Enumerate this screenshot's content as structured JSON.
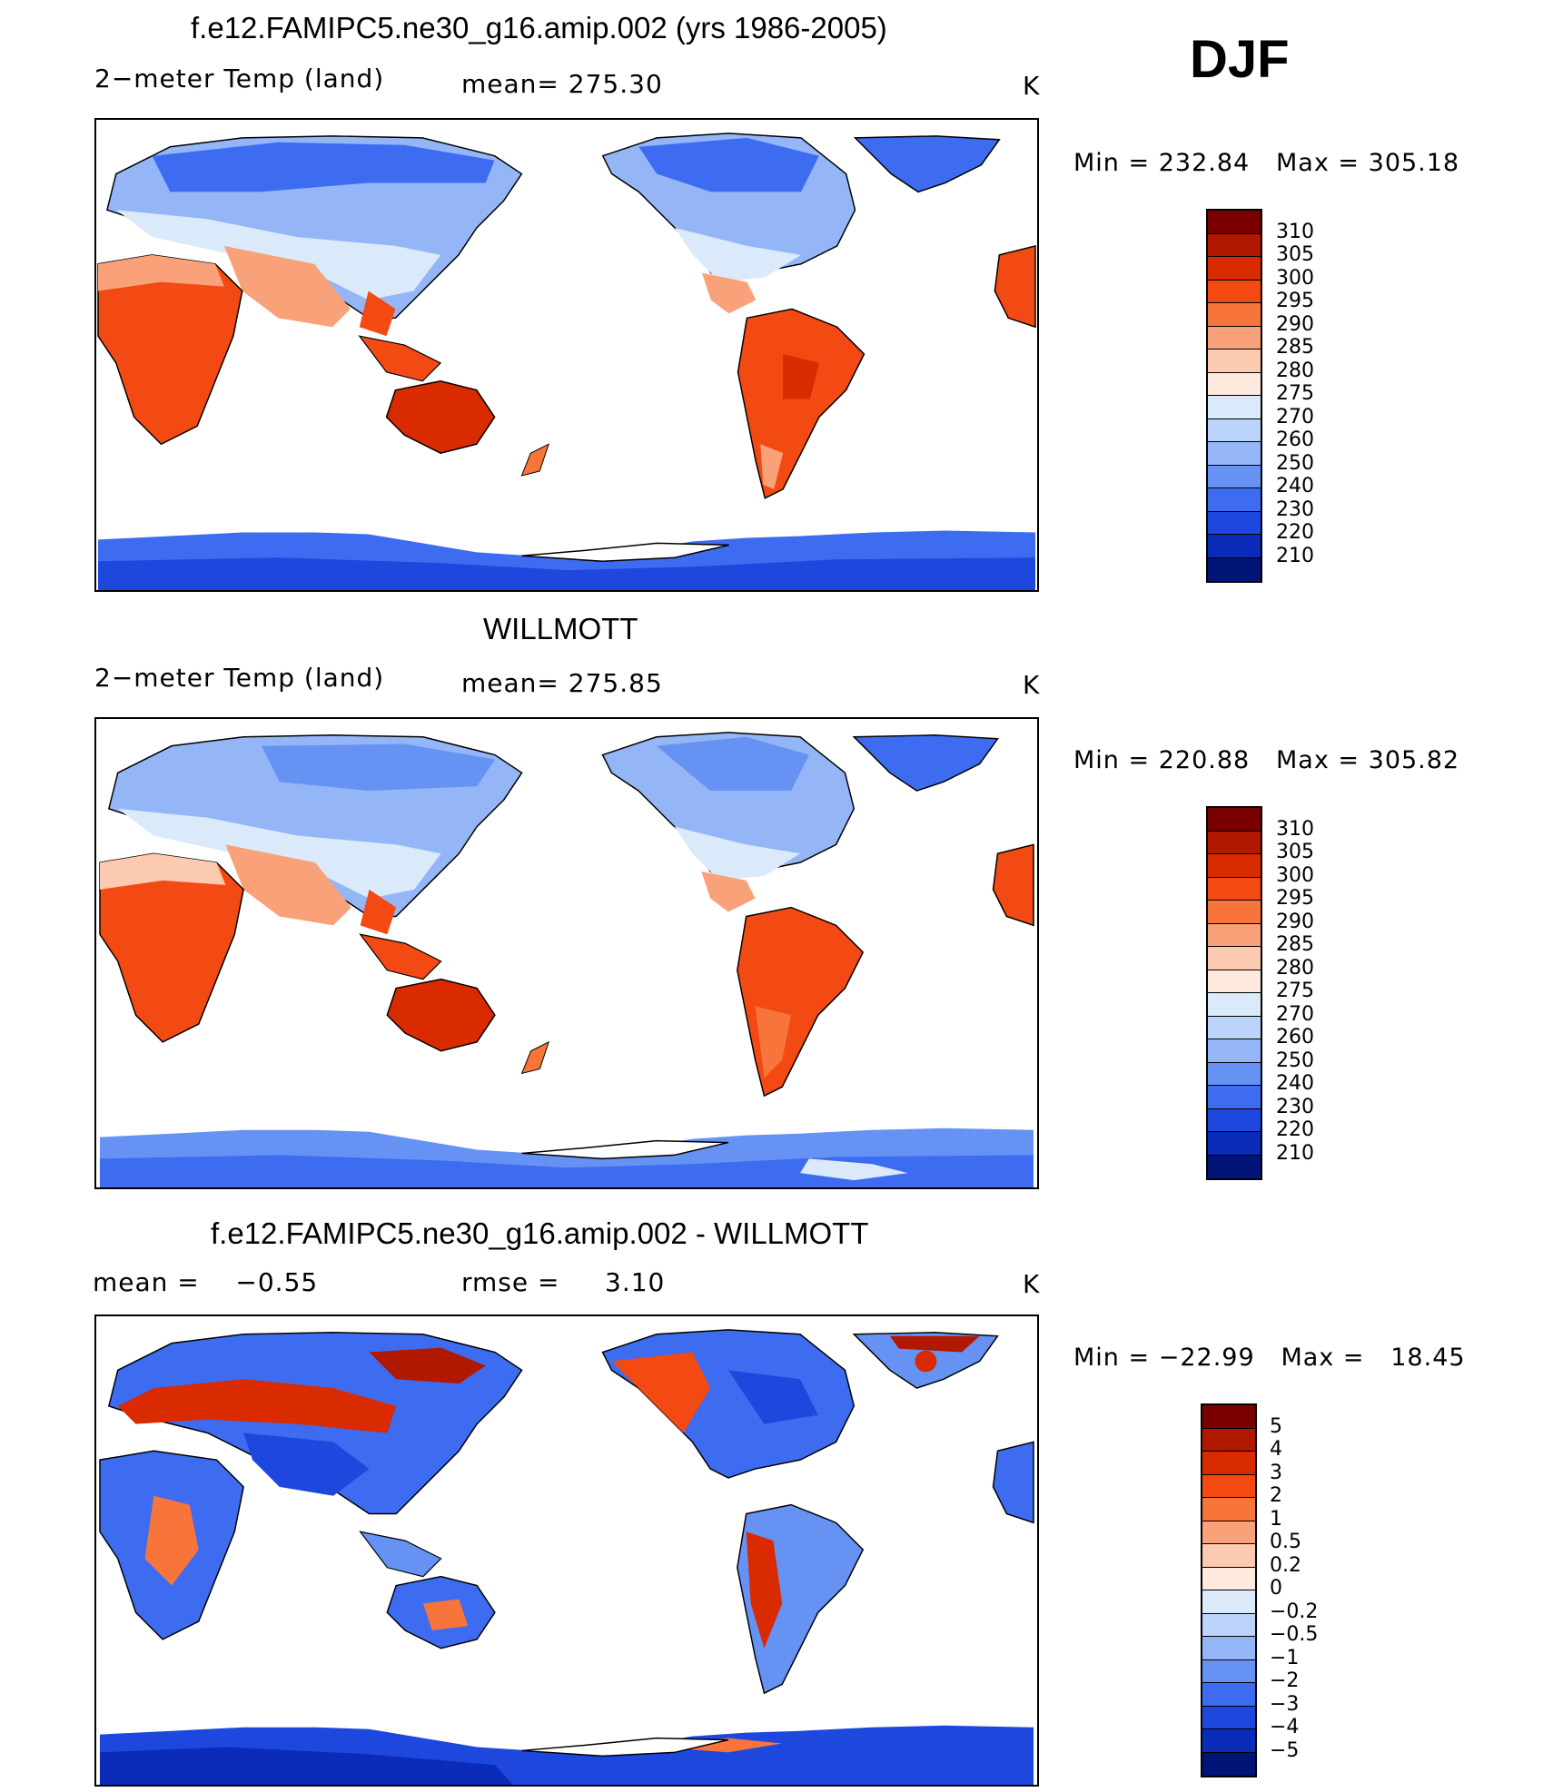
{
  "season": "DJF",
  "panel1": {
    "title": "f.e12.FAMIPC5.ne30_g16.amip.002 (yrs 1986-2005)",
    "variable": "2−meter Temp (land)",
    "mean_label": "mean=",
    "mean_value": "275.30",
    "units": "K",
    "min_label": "Min",
    "min_value": "232.84",
    "max_label": "Max",
    "max_value": "305.18"
  },
  "panel2": {
    "title": "WILLMOTT",
    "variable": "2−meter Temp (land)",
    "mean_label": "mean=",
    "mean_value": "275.85",
    "units": "K",
    "min_label": "Min",
    "min_value": "220.88",
    "max_label": "Max",
    "max_value": "305.82"
  },
  "panel3": {
    "title": "f.e12.FAMIPC5.ne30_g16.amip.002 - WILLMOTT",
    "mean_label": "mean =",
    "mean_value": "−0.55",
    "rmse_label": "rmse =",
    "rmse_value": "3.10",
    "units": "K",
    "min_label": "Min",
    "min_value": "−22.99",
    "max_label": "Max",
    "max_value": "18.45"
  },
  "colorbar_abs": {
    "labels": [
      "310",
      "305",
      "300",
      "295",
      "290",
      "285",
      "280",
      "275",
      "270",
      "260",
      "250",
      "240",
      "230",
      "220",
      "210"
    ],
    "colors": [
      "#7a0000",
      "#b01800",
      "#d92a00",
      "#f24a12",
      "#f7743a",
      "#f9a27a",
      "#fbcab0",
      "#fde9dd",
      "#dbeafb",
      "#bcd4fa",
      "#94b6f7",
      "#6592f3",
      "#3d6cf0",
      "#1e47de",
      "#0a2cb8",
      "#001478"
    ]
  },
  "colorbar_diff": {
    "labels": [
      "5",
      "4",
      "3",
      "2",
      "1",
      "0.5",
      "0.2",
      "0",
      "−0.2",
      "−0.5",
      "−1",
      "−2",
      "−3",
      "−4",
      "−5"
    ],
    "colors": [
      "#7a0000",
      "#b01800",
      "#d92a00",
      "#f24a12",
      "#f7743a",
      "#f9a27a",
      "#fbcab0",
      "#fde9dd",
      "#dbeafb",
      "#bcd4fa",
      "#94b6f7",
      "#6592f3",
      "#3d6cf0",
      "#1e47de",
      "#0a2cb8",
      "#001478"
    ]
  }
}
